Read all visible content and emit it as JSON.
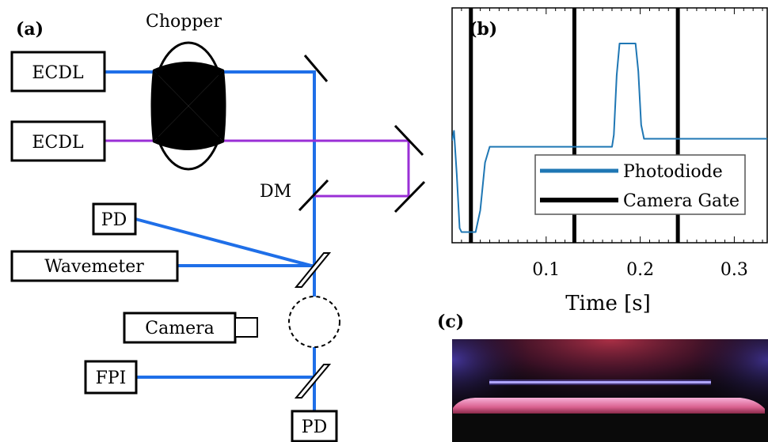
{
  "panel_a": {
    "label": "(a)",
    "chopper_label": "Chopper",
    "ecdl_top": "ECDL",
    "ecdl_bottom": "ECDL",
    "dm_label": "DM",
    "pd_top": "PD",
    "wavemeter": "Wavemeter",
    "camera": "Camera",
    "fpi": "FPI",
    "pd_bottom": "PD",
    "colors": {
      "blue_beam": "#1f6fe8",
      "purple_beam": "#9a2fd6"
    }
  },
  "panel_b": {
    "label": "(b)",
    "chart_data": {
      "type": "line",
      "xlabel": "Time [s]",
      "ylabel": "",
      "xlim": [
        0.0,
        0.335
      ],
      "x_ticks": [
        "0.1",
        "0.2",
        "0.3"
      ],
      "x_tick_values": [
        0.1,
        0.2,
        0.3
      ],
      "grid": false,
      "legend_position": "center-right",
      "series": [
        {
          "name": "Photodiode",
          "color": "#1f77b4",
          "x": [
            0.0,
            0.002,
            0.005,
            0.008,
            0.01,
            0.025,
            0.03,
            0.035,
            0.04,
            0.17,
            0.172,
            0.175,
            0.178,
            0.195,
            0.198,
            0.201,
            0.204,
            0.335
          ],
          "y": [
            0.47,
            0.52,
            0.3,
            0.03,
            0.01,
            0.01,
            0.12,
            0.36,
            0.44,
            0.44,
            0.5,
            0.8,
            0.96,
            0.96,
            0.82,
            0.55,
            0.48,
            0.48
          ]
        },
        {
          "name": "Camera Gate",
          "color": "#000000",
          "vlines": [
            0.02,
            0.13,
            0.24
          ]
        }
      ]
    }
  },
  "panel_c": {
    "label": "(c)"
  }
}
